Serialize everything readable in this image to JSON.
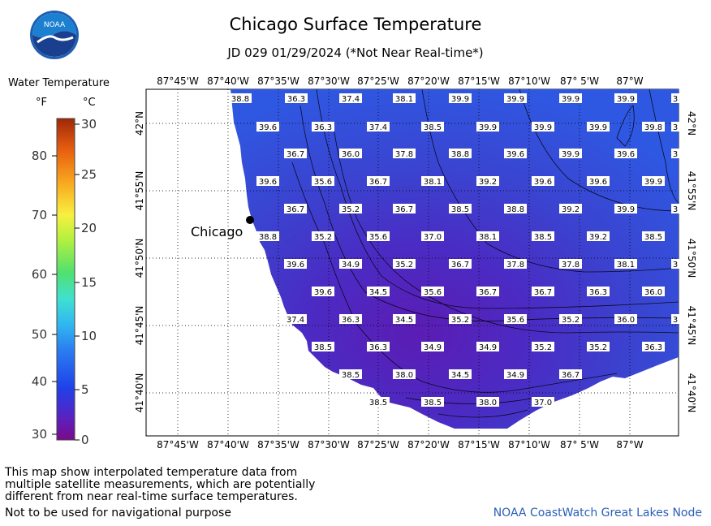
{
  "header": {
    "title": "Chicago Surface Temperature",
    "subtitle": "JD 029 01/29/2024 (*Not Near Real-time*)"
  },
  "logo": {
    "text": "NOAA"
  },
  "legend": {
    "title": "Water Temperature",
    "unit_f": "°F",
    "unit_c": "°C",
    "f_ticks": [
      "30",
      "40",
      "50",
      "60",
      "70",
      "80"
    ],
    "c_ticks": [
      "0",
      "5",
      "10",
      "15",
      "20",
      "25",
      "30"
    ]
  },
  "map": {
    "lon_labels": [
      "87°45'W",
      "87°40'W",
      "87°35'W",
      "87°30'W",
      "87°25'W",
      "87°20'W",
      "87°15'W",
      "87°10'W",
      "87° 5'W",
      "87°W"
    ],
    "lat_labels": [
      "42°N",
      "41°55'N",
      "41°50'N",
      "41°45'N",
      "41°40'N"
    ],
    "city_label": "Chicago",
    "temperature_values": [
      [
        "38.8",
        "36.3",
        "37.4",
        "38.1",
        "39.9",
        "39.9",
        "39.9",
        "39.9",
        "3"
      ],
      [
        "39.6",
        "36.3",
        "37.4",
        "38.5",
        "39.9",
        "39.9",
        "39.9",
        "39.8",
        "3"
      ],
      [
        "36.7",
        "36.0",
        "37.8",
        "38.8",
        "39.6",
        "39.9",
        "39.6",
        "3"
      ],
      [
        "39.6",
        "35.6",
        "36.7",
        "38.1",
        "39.2",
        "39.6",
        "39.6",
        "39.9"
      ],
      [
        "36.7",
        "35.2",
        "36.7",
        "38.5",
        "38.8",
        "39.2",
        "39.9",
        "3"
      ],
      [
        "38.8",
        "35.2",
        "35.6",
        "37.0",
        "38.1",
        "38.5",
        "39.2",
        "38.5"
      ],
      [
        "39.6",
        "34.9",
        "35.2",
        "36.7",
        "37.8",
        "37.8",
        "38.1",
        "3"
      ],
      [
        "39.6",
        "34.5",
        "35.6",
        "36.7",
        "36.7",
        "36.3",
        "36.0"
      ],
      [
        "37.4",
        "36.3",
        "34.5",
        "35.2",
        "35.6",
        "35.2",
        "36.0",
        "3"
      ],
      [
        "38.5",
        "36.3",
        "34.9",
        "34.9",
        "35.2",
        "35.2",
        "36.3"
      ],
      [
        "38.5",
        "38.0",
        "34.5",
        "34.9",
        "36.7"
      ],
      [
        "38.5",
        "38.5",
        "38.0",
        "37.0"
      ]
    ]
  },
  "footer": {
    "note_lines": [
      "This map show interpolated temperature data from",
      "multiple satellite measurements, which are potentially",
      "different from near real-time surface temperatures."
    ],
    "nav_warning": "Not to be used for navigational purpose",
    "credit": "NOAA CoastWatch Great Lakes Node"
  },
  "colors": {
    "water_deep": "#5a1fb0",
    "water_mid": "#3a44cc",
    "water_warm": "#2f5ae0",
    "credit": "#2a5fb8"
  }
}
